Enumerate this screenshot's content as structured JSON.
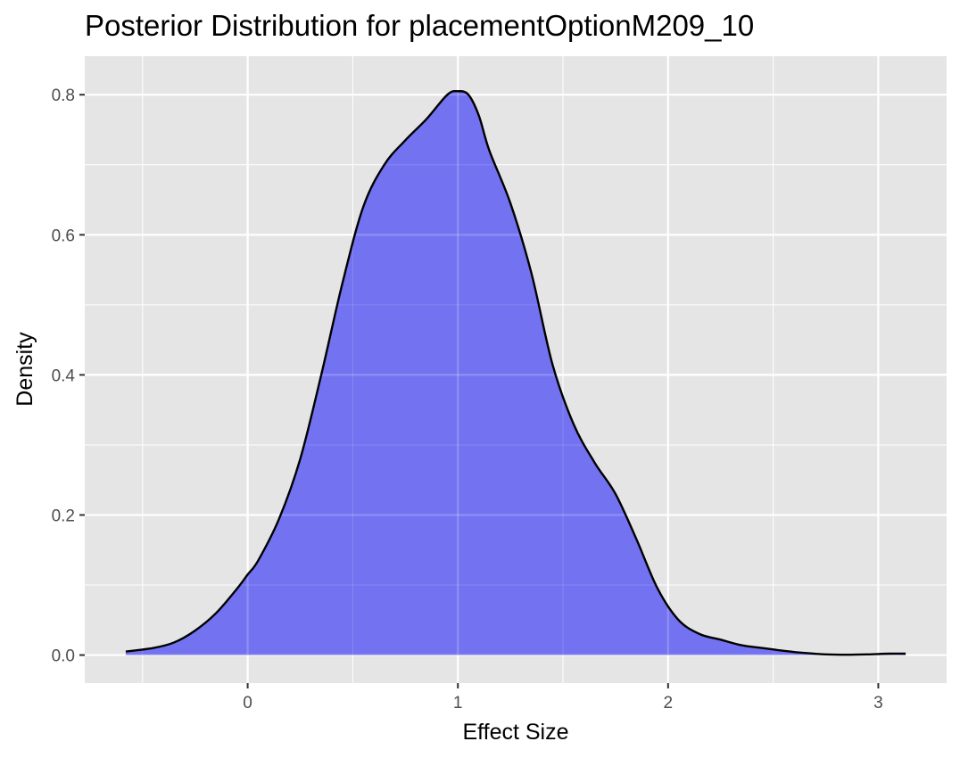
{
  "chart_data": {
    "type": "area",
    "title": "Posterior Distribution for placementOptionM209_10",
    "xlabel": "Effect Size",
    "ylabel": "Density",
    "xlim": [
      -0.775,
      3.325
    ],
    "ylim": [
      -0.04,
      0.855
    ],
    "x_ticks": [
      0,
      1,
      2,
      3
    ],
    "x_tick_labels": [
      "0",
      "1",
      "2",
      "3"
    ],
    "y_ticks": [
      0.0,
      0.2,
      0.4,
      0.6,
      0.8
    ],
    "y_tick_labels": [
      "0.0",
      "0.2",
      "0.4",
      "0.6",
      "0.8"
    ],
    "grid": true,
    "fill_color": "#7373f2",
    "line_color": "#000000",
    "panel_background": "#e5e5e5",
    "grid_color": "#ffffff",
    "x": [
      -0.58,
      -0.45,
      -0.35,
      -0.25,
      -0.15,
      -0.05,
      0.0,
      0.05,
      0.15,
      0.25,
      0.35,
      0.45,
      0.55,
      0.65,
      0.75,
      0.85,
      0.95,
      1.0,
      1.05,
      1.1,
      1.15,
      1.25,
      1.35,
      1.45,
      1.55,
      1.65,
      1.75,
      1.85,
      1.95,
      2.05,
      2.15,
      2.25,
      2.35,
      2.45,
      2.55,
      2.65,
      2.75,
      2.85,
      2.95,
      3.05,
      3.13
    ],
    "y": [
      0.005,
      0.01,
      0.018,
      0.035,
      0.06,
      0.095,
      0.115,
      0.135,
      0.195,
      0.28,
      0.4,
      0.53,
      0.64,
      0.7,
      0.735,
      0.765,
      0.8,
      0.805,
      0.8,
      0.77,
      0.72,
      0.645,
      0.545,
      0.415,
      0.33,
      0.275,
      0.23,
      0.165,
      0.095,
      0.05,
      0.03,
      0.022,
      0.014,
      0.01,
      0.006,
      0.003,
      0.001,
      0.0005,
      0.001,
      0.002,
      0.002
    ]
  }
}
